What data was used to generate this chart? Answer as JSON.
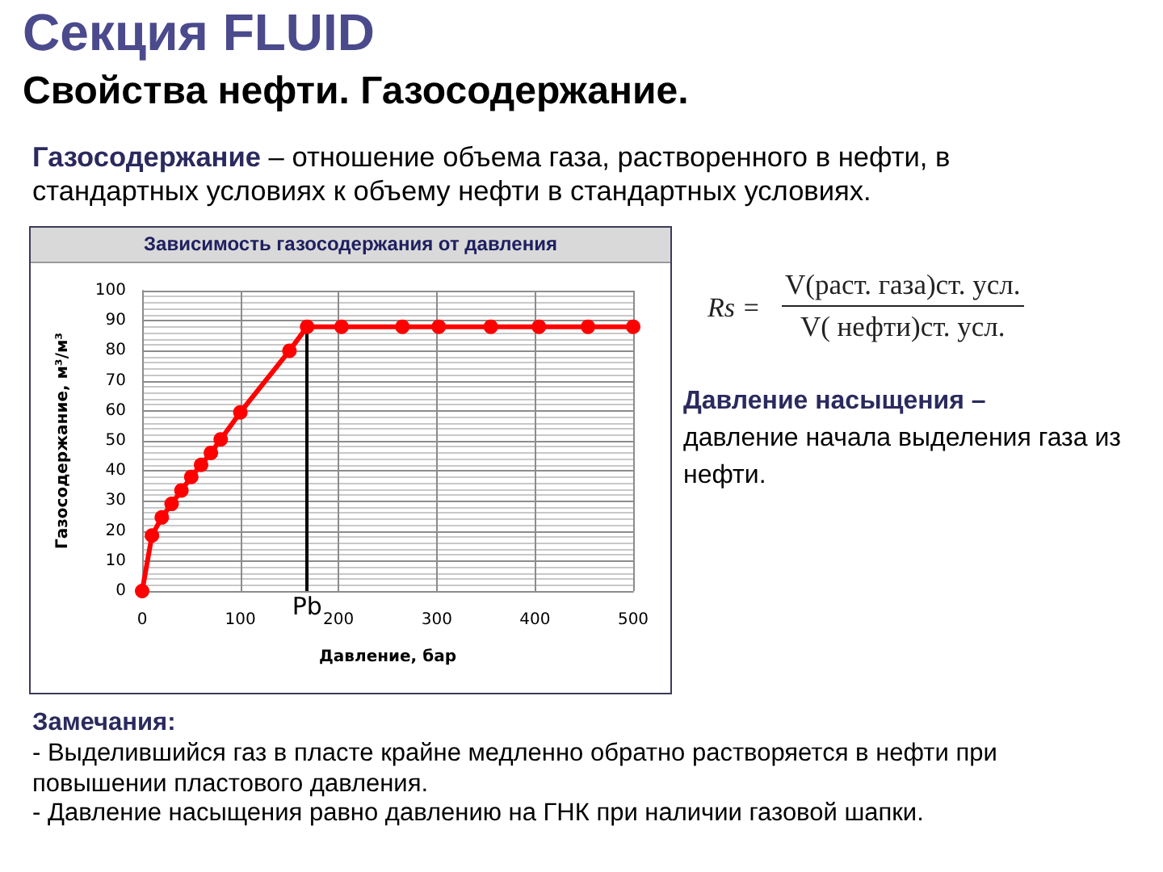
{
  "chart_data": {
    "type": "line",
    "title": "Зависимость газосодержания от давления",
    "xlabel": "Давление, бар",
    "ylabel": "Газосодержание, м³/м³",
    "x": [
      0,
      10,
      20,
      30,
      40,
      50,
      60,
      70,
      80,
      100,
      150,
      168,
      203,
      265,
      302,
      355,
      404,
      454,
      500
    ],
    "series": [
      {
        "color": "#ff0000",
        "values": [
          0,
          18.5,
          24.5,
          29,
          33.5,
          38,
          42,
          46,
          50.5,
          59.5,
          80,
          88,
          88,
          88,
          88,
          88,
          88,
          88,
          88
        ]
      }
    ],
    "xlim": [
      0,
      500
    ],
    "xticks": [
      0,
      100,
      200,
      300,
      400,
      500
    ],
    "ylim": [
      0,
      100
    ],
    "yticks": [
      0,
      10,
      20,
      30,
      40,
      50,
      60,
      70,
      80,
      90,
      100
    ],
    "grid": true,
    "marker": "circle",
    "ref_lines": [
      {
        "axis": "x",
        "value": 168,
        "label": "Pb",
        "color": "#000000"
      }
    ],
    "annotations": [
      "Секция FLUID",
      "Свойства нефти. Газосодержание.",
      "Газосодержание",
      "– отношение объема газа, растворенного в нефти, в",
      "стандартных условиях к объему нефти в стандартных условиях.",
      "Rs =",
      "V(раст. газа)ст. усл.",
      "V( нефти)ст. усл.",
      "Давление насыщения –",
      "давление начала выделения газа из нефти.",
      "Замечания:",
      "- Выделившийся газ в пласте крайне медленно обратно растворяется в нефти при повышении пластового давления.",
      "- Давление насыщения равно давлению на ГНК при наличии газовой шапки."
    ]
  }
}
